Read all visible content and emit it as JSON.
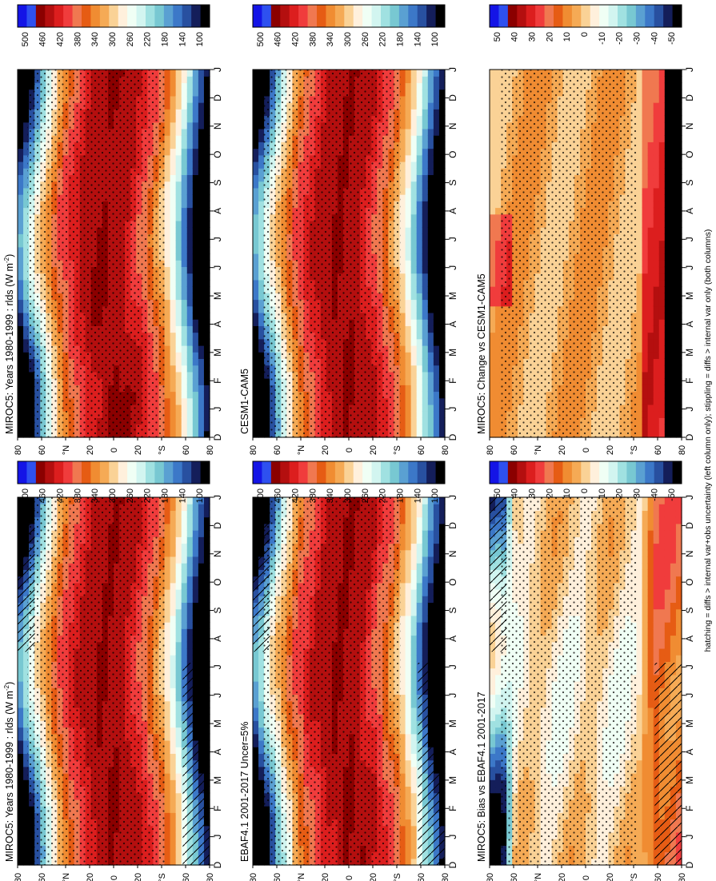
{
  "figure": {
    "footnote": "hatching = diffs > internal var+obs uncertainty (left column only); stippling = diffs > internal var only (both columns)"
  },
  "chart_data": [
    {
      "type": "heatmap",
      "id": "p_miroc_left",
      "title": "MIROC5: Years 1980-1999 : rlds (W m",
      "title_units_sup": "-2",
      "title_tail": ")",
      "variable": "rlds",
      "field": "abs",
      "x_ticks": [
        "D",
        "J",
        "F",
        "M",
        "A",
        "M",
        "J",
        "J",
        "A",
        "S",
        "O",
        "N",
        "D",
        "J"
      ],
      "y_ticks": [
        "80",
        "60",
        "°N",
        "20",
        "0",
        "20",
        "°S",
        "60",
        "80"
      ],
      "hatching": true,
      "stippling": true,
      "colorbar": {
        "labels": [
          "500",
          "460",
          "420",
          "380",
          "340",
          "300",
          "260",
          "220",
          "180",
          "140",
          "100"
        ],
        "range": [
          100,
          500
        ]
      }
    },
    {
      "type": "heatmap",
      "id": "p_miroc_right",
      "title": "MIROC5: Years 1980-1999 : rlds (W m",
      "title_units_sup": "-2",
      "title_tail": ")",
      "variable": "rlds",
      "field": "abs",
      "x_ticks": [
        "D",
        "J",
        "F",
        "M",
        "A",
        "M",
        "J",
        "J",
        "A",
        "S",
        "O",
        "N",
        "D",
        "J"
      ],
      "y_ticks": [
        "80",
        "60",
        "°N",
        "20",
        "0",
        "20",
        "°S",
        "60",
        "80"
      ],
      "hatching": false,
      "stippling": true,
      "colorbar": {
        "labels": [
          "500",
          "460",
          "420",
          "380",
          "340",
          "300",
          "260",
          "220",
          "180",
          "140",
          "100"
        ],
        "range": [
          100,
          500
        ]
      }
    },
    {
      "type": "heatmap",
      "id": "p_ebaf",
      "title": "EBAF4.1 2001-2017 Uncer=5%",
      "title_units_sup": "",
      "title_tail": "",
      "variable": "rlds",
      "field": "abs",
      "x_ticks": [
        "D",
        "J",
        "F",
        "M",
        "A",
        "M",
        "J",
        "J",
        "A",
        "S",
        "O",
        "N",
        "D",
        "J"
      ],
      "y_ticks": [
        "80",
        "60",
        "°N",
        "20",
        "0",
        "20",
        "°S",
        "60",
        "80"
      ],
      "hatching": true,
      "stippling": true,
      "colorbar": {
        "labels": [
          "500",
          "460",
          "420",
          "380",
          "340",
          "300",
          "260",
          "220",
          "180",
          "140",
          "100"
        ],
        "range": [
          100,
          500
        ]
      }
    },
    {
      "type": "heatmap",
      "id": "p_cesm",
      "title": "CESM1-CAM5",
      "title_units_sup": "",
      "title_tail": "",
      "variable": "rlds",
      "field": "abs",
      "x_ticks": [
        "D",
        "J",
        "F",
        "M",
        "A",
        "M",
        "J",
        "J",
        "A",
        "S",
        "O",
        "N",
        "D",
        "J"
      ],
      "y_ticks": [
        "80",
        "60",
        "°N",
        "20",
        "0",
        "20",
        "°S",
        "60",
        "80"
      ],
      "hatching": false,
      "stippling": true,
      "colorbar": {
        "labels": [
          "500",
          "460",
          "420",
          "380",
          "340",
          "300",
          "260",
          "220",
          "180",
          "140",
          "100"
        ],
        "range": [
          100,
          500
        ]
      }
    },
    {
      "type": "heatmap",
      "id": "p_bias",
      "title": "MIROC5: Bias vs EBAF4.1 2001-2017",
      "title_units_sup": "",
      "title_tail": "",
      "variable": "rlds",
      "field": "bias",
      "x_ticks": [
        "D",
        "J",
        "F",
        "M",
        "A",
        "M",
        "J",
        "J",
        "A",
        "S",
        "O",
        "N",
        "D",
        "J"
      ],
      "y_ticks": [
        "80",
        "60",
        "°N",
        "20",
        "0",
        "20",
        "°S",
        "60",
        "80"
      ],
      "hatching": true,
      "stippling": true,
      "colorbar": {
        "labels": [
          "50",
          "40",
          "30",
          "20",
          "10",
          "0",
          "-10",
          "-20",
          "-30",
          "-40",
          "-50"
        ],
        "range": [
          -50,
          50
        ]
      }
    },
    {
      "type": "heatmap",
      "id": "p_change",
      "title": "MIROC5: Change vs CESM1-CAM5",
      "title_units_sup": "",
      "title_tail": "",
      "variable": "rlds",
      "field": "change",
      "x_ticks": [
        "D",
        "J",
        "F",
        "M",
        "A",
        "M",
        "J",
        "J",
        "A",
        "S",
        "O",
        "N",
        "D",
        "J"
      ],
      "y_ticks": [
        "80",
        "60",
        "°N",
        "20",
        "0",
        "20",
        "°S",
        "60",
        "80"
      ],
      "hatching": false,
      "stippling": true,
      "colorbar": {
        "labels": [
          "50",
          "40",
          "30",
          "20",
          "10",
          "0",
          "-10",
          "-20",
          "-30",
          "-40",
          "-50"
        ],
        "range": [
          -50,
          50
        ]
      }
    }
  ],
  "colors": {
    "palette": [
      "#0000c8",
      "#1414e6",
      "#2e50f0",
      "#8b0000",
      "#b40f0f",
      "#dc1e1e",
      "#f03c3c",
      "#f07850",
      "#e65c14",
      "#f08c32",
      "#f5aa55",
      "#fad296",
      "#fff0dc",
      "#f0fff5",
      "#d2f5f0",
      "#a0e1e1",
      "#78c8d2",
      "#5aa0d2",
      "#3c78c8",
      "#2850a0",
      "#141e5a",
      "#000000"
    ]
  }
}
